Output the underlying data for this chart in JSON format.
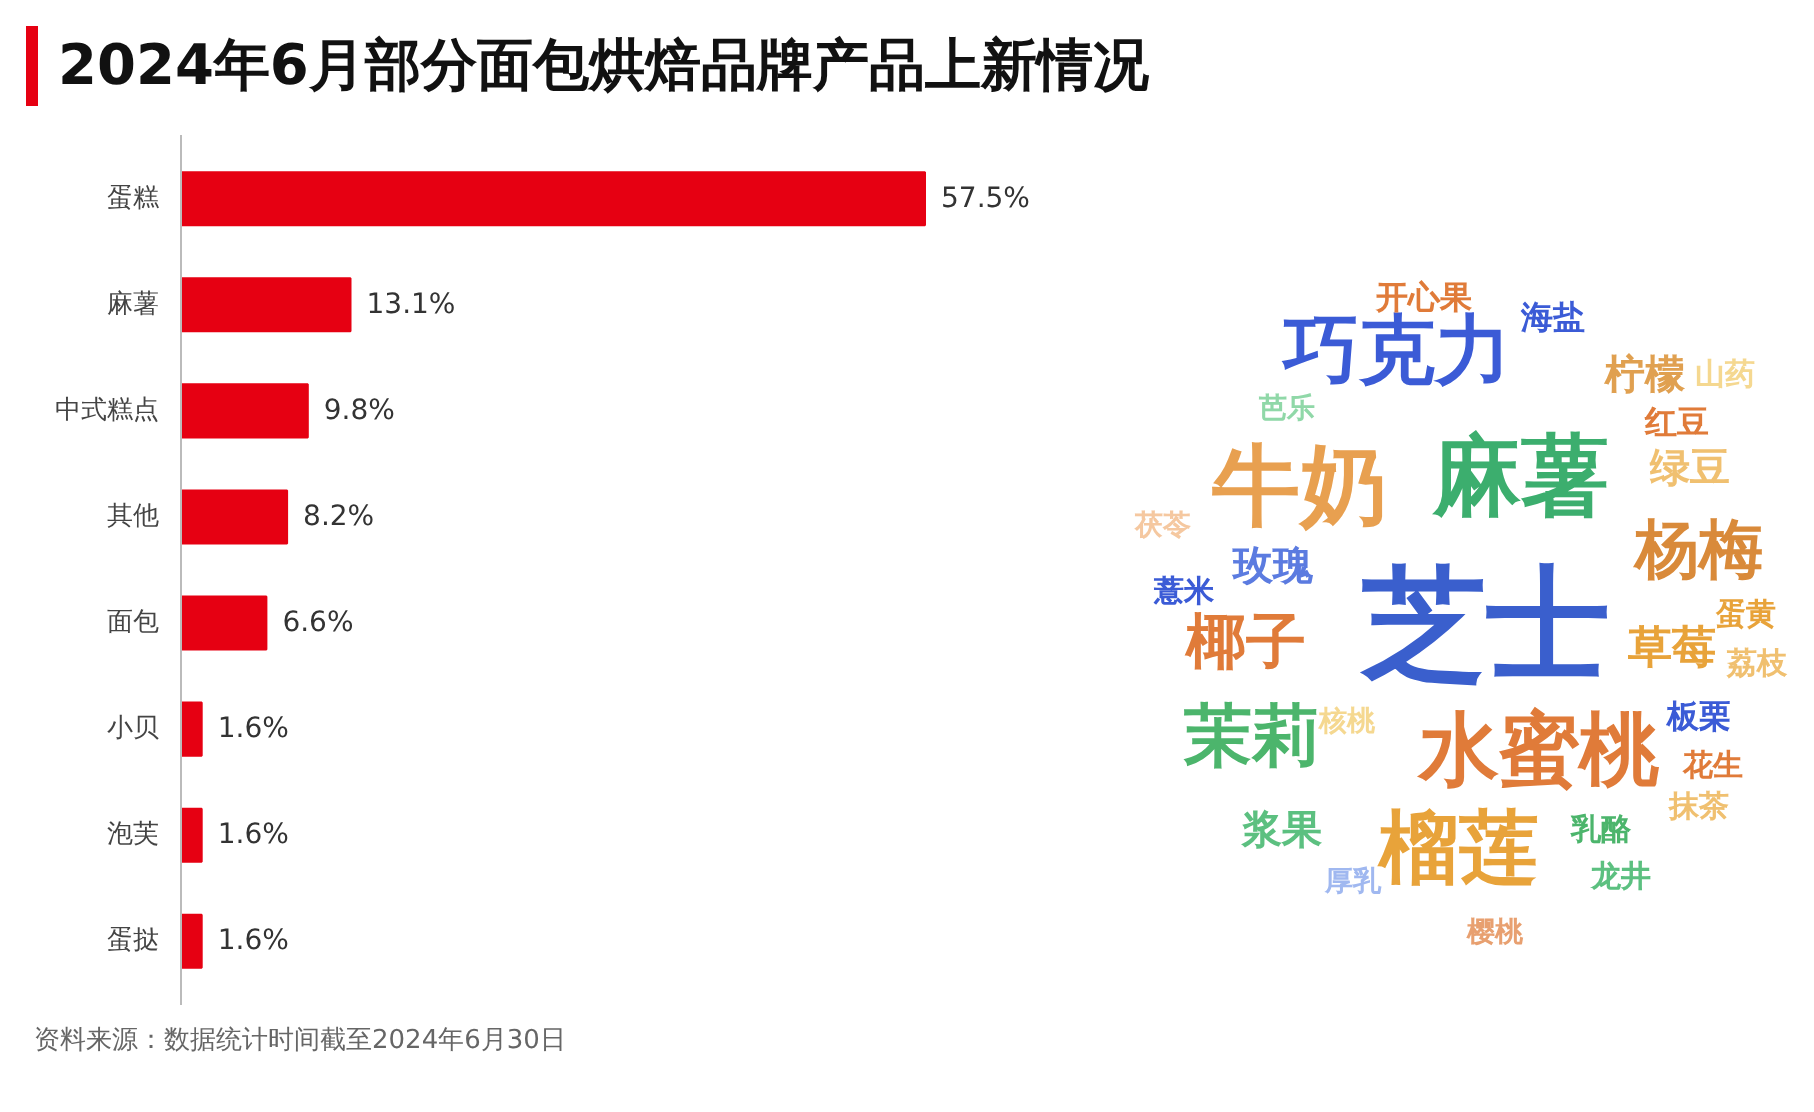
{
  "chart_data": [
    {
      "type": "bar",
      "orientation": "horizontal",
      "title": "2024年6月部分面包烘焙品牌产品上新情况",
      "categories": [
        "蛋糕",
        "麻薯",
        "中式糕点",
        "其他",
        "面包",
        "小贝",
        "泡芙",
        "蛋挞"
      ],
      "values": [
        57.5,
        13.1,
        9.8,
        8.2,
        6.6,
        1.6,
        1.6,
        1.6
      ],
      "value_labels": [
        "57.5%",
        "13.1%",
        "9.8%",
        "8.2%",
        "6.6%",
        "1.6%",
        "1.6%",
        "1.6%"
      ],
      "color": "#e60012",
      "grid": false,
      "annotations": [
        "资料来源：数据统计时间截至2024年6月30日"
      ]
    },
    {
      "type": "other",
      "annotations": [
        "芝士",
        "牛奶",
        "麻薯",
        "巧克力",
        "水蜜桃",
        "榴莲",
        "茉莉",
        "杨梅",
        "椰子",
        "玫瑰",
        "草莓",
        "柠檬",
        "绿豆",
        "浆果",
        "开心果",
        "海盐",
        "红豆",
        "山药",
        "芭乐",
        "茯苓",
        "薏米",
        "核桃",
        "蛋黄",
        "荔枝",
        "板栗",
        "花生",
        "乳酪",
        "抹茶",
        "厚乳",
        "龙井",
        "樱桃"
      ],
      "colors": [
        "#3a5fcd",
        "#e8a050",
        "#3cae6e",
        "#3b5bd6",
        "#e07b39",
        "#e8a33a",
        "#4cb56c",
        "#d98a3a",
        "#e07b39",
        "#5b7be0",
        "#e8a33a",
        "#e0a050",
        "#f0c070",
        "#5cc080",
        "#e07b39",
        "#3b5bd6",
        "#e07b39",
        "#f5d890",
        "#90d8a8",
        "#f5c8a0",
        "#3b5bd6",
        "#f5d890",
        "#e8a33a",
        "#f0c070",
        "#3b5bd6",
        "#e07b39",
        "#4cb56c",
        "#f0c070",
        "#a0b8f0",
        "#5cc080",
        "#e8a070"
      ]
    }
  ]
}
